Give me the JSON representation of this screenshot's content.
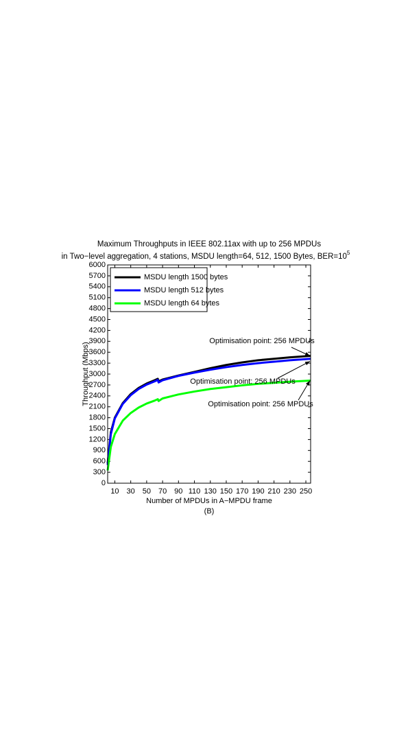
{
  "chart_data": {
    "type": "line",
    "title": [
      "Maximum Throughputs in IEEE 802.11ax with up to 256 MPDUs",
      "in Two−level aggregation, 4 stations, MSDU length=64, 512, 1500 Bytes, BER=10"
    ],
    "title_superscript": "5",
    "x_label": "Number of MPDUs in A−MPDU frame",
    "subtitle": "(B)",
    "y_label": "Throughput (Mbps)",
    "x": [
      1,
      5,
      10,
      20,
      30,
      40,
      50,
      60,
      64,
      65,
      70,
      90,
      110,
      130,
      150,
      170,
      190,
      210,
      230,
      256
    ],
    "series": [
      {
        "name": "MSDU length 1500 bytes",
        "color": "#000000",
        "values": [
          550,
          1400,
          1800,
          2200,
          2450,
          2620,
          2740,
          2830,
          2870,
          2800,
          2850,
          2960,
          3060,
          3160,
          3250,
          3320,
          3380,
          3420,
          3460,
          3500
        ]
      },
      {
        "name": "MSDU length 512 bytes",
        "color": "#0000ff",
        "values": [
          500,
          1350,
          1780,
          2180,
          2420,
          2590,
          2710,
          2800,
          2840,
          2770,
          2830,
          2950,
          3040,
          3120,
          3190,
          3250,
          3300,
          3340,
          3380,
          3420
        ]
      },
      {
        "name": "MSDU length 64 bytes",
        "color": "#00ff00",
        "values": [
          350,
          1000,
          1350,
          1720,
          1930,
          2080,
          2190,
          2270,
          2310,
          2260,
          2330,
          2440,
          2520,
          2590,
          2640,
          2690,
          2730,
          2760,
          2790,
          2820
        ]
      }
    ],
    "annotations": [
      {
        "text": "Optimisation point: 256 MPDUs",
        "xy": [
          256,
          3500
        ]
      },
      {
        "text": "Optimisation point: 256 MPDUs",
        "xy": [
          256,
          3350
        ]
      },
      {
        "text": "Optimisation point: 256 MPDUs",
        "xy": [
          256,
          2820
        ]
      }
    ],
    "xlim": [
      1,
      256
    ],
    "xticks": [
      10,
      30,
      50,
      70,
      90,
      110,
      130,
      150,
      170,
      190,
      210,
      230,
      250
    ],
    "ylim": [
      0,
      6000
    ],
    "yticks": [
      0,
      300,
      600,
      900,
      1200,
      1500,
      1800,
      2100,
      2400,
      2700,
      3000,
      3300,
      3600,
      3900,
      4200,
      4500,
      4800,
      5100,
      5400,
      5700,
      6000
    ],
    "legend": "upper left",
    "grid": false
  }
}
